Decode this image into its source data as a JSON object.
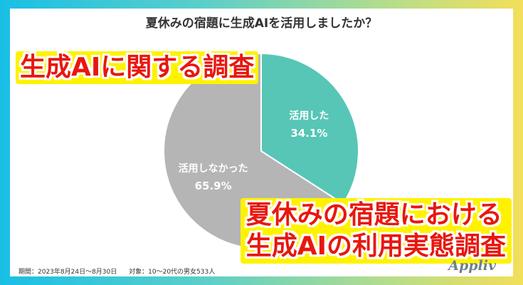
{
  "chart_data": {
    "type": "pie",
    "title": "夏休みの宿題に生成AIを活用しましたか？",
    "slices": [
      {
        "label": "活用した",
        "value": 34.1,
        "display": "34.1%",
        "color": "#57c6b6"
      },
      {
        "label": "活用しなかった",
        "value": 65.9,
        "display": "65.9%",
        "color": "#b5b5b5"
      }
    ]
  },
  "overlay": {
    "line1": "生成AIに関する調査",
    "line2a": "夏休みの宿題における",
    "line2b": "生成AIの利用実態調査"
  },
  "footer": {
    "period": "期間：2023年8月24日～8月30日",
    "target": "対象：10～20代の男女533人"
  },
  "logo": "Appliv"
}
